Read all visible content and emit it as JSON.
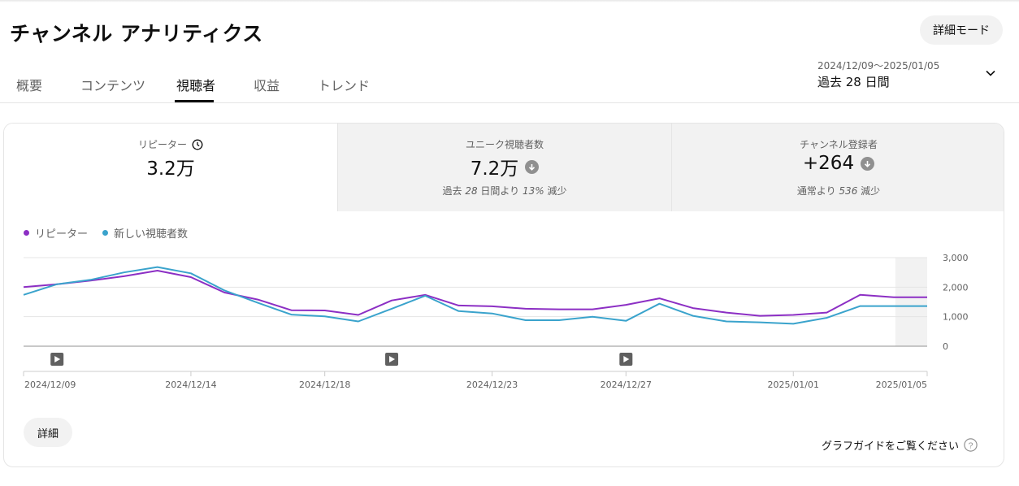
{
  "header": {
    "title": "チャンネル アナリティクス",
    "advanced_mode_label": "詳細モード"
  },
  "tabs": [
    {
      "label": "概要",
      "active": false
    },
    {
      "label": "コンテンツ",
      "active": false
    },
    {
      "label": "視聴者",
      "active": true
    },
    {
      "label": "収益",
      "active": false
    },
    {
      "label": "トレンド",
      "active": false
    }
  ],
  "date_range": {
    "dates": "2024/12/09～2025/01/05",
    "period": "過去 28 日間"
  },
  "metrics": [
    {
      "label": "リピーター",
      "value": "3.2万",
      "icon": "clock-icon"
    },
    {
      "label": "ユニーク視聴者数",
      "value": "7.2万",
      "icon": "arrow-down-icon",
      "sub_prefix": "過去 ",
      "sub_em1": "28",
      "sub_mid": " 日間より ",
      "sub_em2": "13%",
      "sub_suffix": " 減少"
    },
    {
      "label": "チャンネル登録者",
      "value": "+264",
      "icon": "arrow-down-icon",
      "sub_prefix": "通常より ",
      "sub_em1": "536",
      "sub_suffix": " 減少"
    }
  ],
  "legend": [
    {
      "label": "リピーター",
      "color": "#8c2fc4"
    },
    {
      "label": "新しい視聴者数",
      "color": "#3aa3cc"
    }
  ],
  "chart_data": {
    "type": "line",
    "x": [
      "2024/12/09",
      "2024/12/10",
      "2024/12/11",
      "2024/12/12",
      "2024/12/13",
      "2024/12/14",
      "2024/12/15",
      "2024/12/16",
      "2024/12/17",
      "2024/12/18",
      "2024/12/19",
      "2024/12/20",
      "2024/12/21",
      "2024/12/22",
      "2024/12/23",
      "2024/12/24",
      "2024/12/25",
      "2024/12/26",
      "2024/12/27",
      "2024/12/28",
      "2024/12/29",
      "2024/12/30",
      "2024/12/31",
      "2025/01/01",
      "2025/01/02",
      "2025/01/03",
      "2025/01/04",
      "2025/01/05"
    ],
    "x_tick_labels": [
      "2024/12/09",
      "2024/12/14",
      "2024/12/18",
      "2024/12/23",
      "2024/12/27",
      "2025/01/01",
      "2025/01/05"
    ],
    "series": [
      {
        "name": "リピーター",
        "color": "#8c2fc4",
        "values": [
          2000,
          2100,
          2220,
          2370,
          2560,
          2340,
          1820,
          1580,
          1220,
          1210,
          1060,
          1550,
          1740,
          1380,
          1350,
          1270,
          1250,
          1250,
          1400,
          1620,
          1290,
          1140,
          1030,
          1060,
          1140,
          1740,
          1660,
          1660
        ]
      },
      {
        "name": "新しい視聴者数",
        "color": "#3aa3cc",
        "values": [
          1740,
          2100,
          2250,
          2500,
          2680,
          2470,
          1890,
          1470,
          1070,
          1010,
          840,
          1270,
          1710,
          1190,
          1110,
          880,
          880,
          1000,
          860,
          1440,
          1030,
          840,
          810,
          760,
          960,
          1360,
          1360,
          1360
        ]
      }
    ],
    "ylim": [
      0,
      3000
    ],
    "y_tick_labels": [
      "3,000",
      "2,000",
      "1,000",
      "0"
    ],
    "grid": true,
    "legend_position": "top-left",
    "video_markers": [
      "2024/12/10",
      "2024/12/20",
      "2024/12/27"
    ]
  },
  "footer": {
    "detail_label": "詳細",
    "guide_label": "グラフガイドをご覧ください"
  }
}
